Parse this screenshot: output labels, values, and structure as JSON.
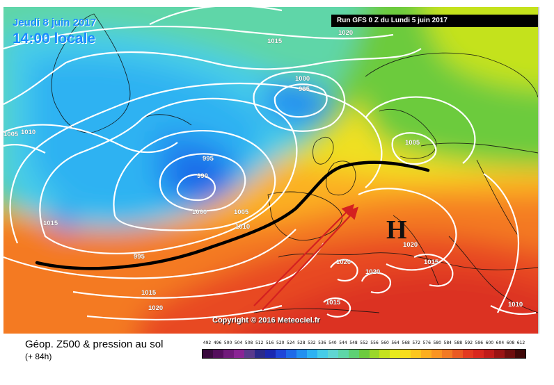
{
  "header": {
    "date": "Jeudi 8 juin 2017",
    "time": "14:00 locale",
    "run": "Run GFS 0 Z du Lundi 5 juin 2017"
  },
  "copyright": "Copyright © 2016 Meteociel.fr",
  "legend": {
    "title": "Géop. Z500 & pression au sol",
    "subtitle": "(+ 84h)",
    "scale_values": [
      "492",
      "496",
      "500",
      "504",
      "508",
      "512",
      "516",
      "520",
      "524",
      "528",
      "532",
      "536",
      "540",
      "544",
      "548",
      "552",
      "556",
      "560",
      "564",
      "568",
      "572",
      "576",
      "580",
      "584",
      "588",
      "592",
      "596",
      "600",
      "604",
      "608",
      "612"
    ],
    "scale_colors": [
      "#3a0a3e",
      "#540e5c",
      "#701a7a",
      "#8a2494",
      "#5a3a8c",
      "#2a2a8a",
      "#1a28b0",
      "#1f46d8",
      "#1e6ae8",
      "#2290f0",
      "#2eb2f2",
      "#46cce8",
      "#60d6d2",
      "#5ed6a8",
      "#5ed074",
      "#6ccb3e",
      "#9ad82a",
      "#c4e21e",
      "#e8ea1c",
      "#f8de1c",
      "#fcc61e",
      "#fcae20",
      "#fa9422",
      "#f27a24",
      "#ea5a22",
      "#e23a20",
      "#d8281e",
      "#c01c1a",
      "#9a1414",
      "#6e0e0e",
      "#400808"
    ]
  },
  "map": {
    "isobars": [
      {
        "label": "1015"
      },
      {
        "label": "1020"
      },
      {
        "label": "1000"
      },
      {
        "label": "995"
      },
      {
        "label": "1005"
      },
      {
        "label": "1010"
      },
      {
        "label": "1005"
      },
      {
        "label": "995"
      },
      {
        "label": "990"
      },
      {
        "label": "1000"
      },
      {
        "label": "1005"
      },
      {
        "label": "1010"
      },
      {
        "label": "1015"
      },
      {
        "label": "995"
      },
      {
        "label": "1015"
      },
      {
        "label": "1020"
      },
      {
        "label": "1020"
      },
      {
        "label": "1015"
      },
      {
        "label": "1020"
      },
      {
        "label": "1020"
      },
      {
        "label": "1015"
      },
      {
        "label": "1010"
      }
    ],
    "high_symbol": "H"
  }
}
